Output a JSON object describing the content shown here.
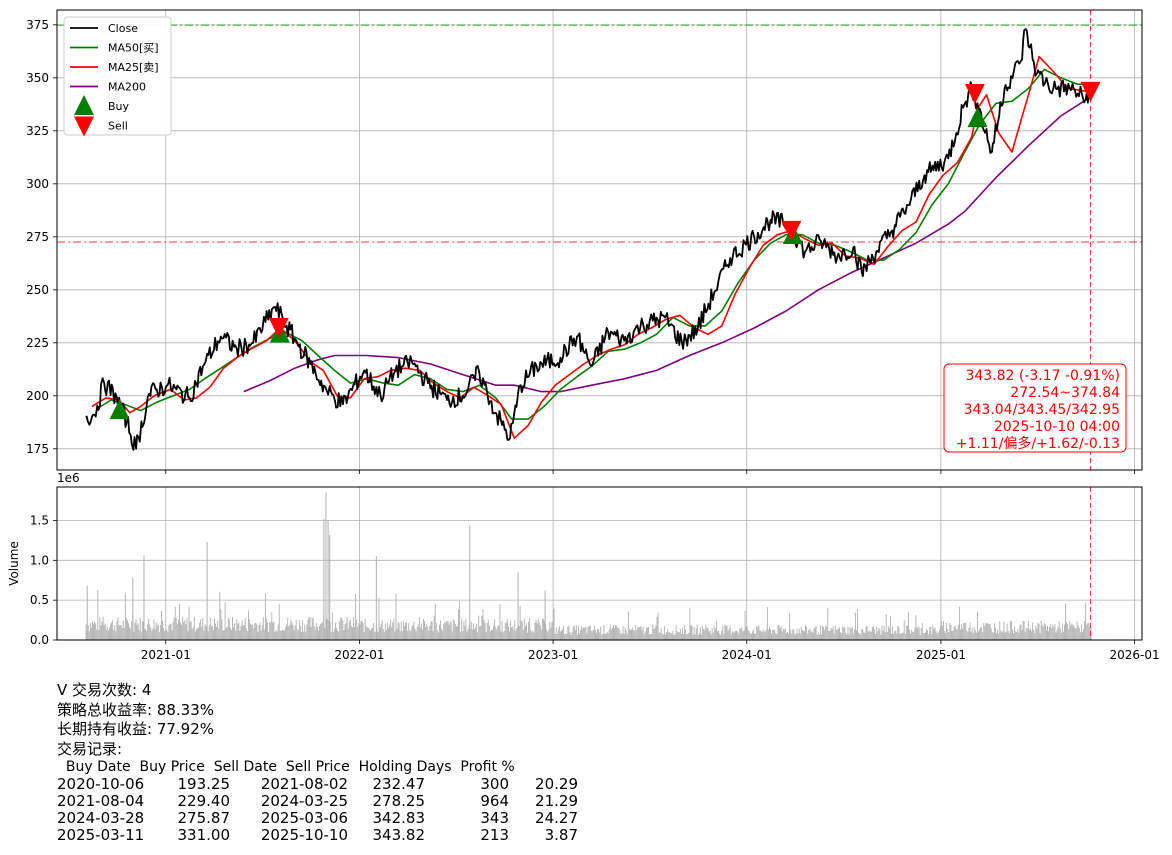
{
  "chart_data": [
    {
      "type": "line",
      "ylim": [
        165,
        382
      ],
      "yticks": [
        175,
        200,
        225,
        250,
        275,
        300,
        325,
        350,
        375
      ],
      "xlim": [
        "2020-06-10",
        "2026-01-15"
      ],
      "xticks": [
        "2021-01",
        "2022-01",
        "2023-01",
        "2024-01",
        "2025-01",
        "2026-01"
      ],
      "grid": true,
      "legend_position": "top-left",
      "colors": {
        "close": "#000000",
        "ma50": "#008000",
        "ma25": "#ff0000",
        "ma200": "#800080",
        "buy": "#008000",
        "sell": "#ff0000"
      },
      "series": [
        {
          "name": "Close",
          "color": "#000000",
          "x": [
            "2020-08-03",
            "2020-08-20",
            "2020-09-07",
            "2020-10-01",
            "2020-10-20",
            "2020-11-06",
            "2020-12-01",
            "2021-01-04",
            "2021-02-15",
            "2021-03-15",
            "2021-04-15",
            "2021-05-15",
            "2021-06-15",
            "2021-07-26",
            "2021-08-10",
            "2021-09-01",
            "2021-10-01",
            "2021-11-01",
            "2021-12-01",
            "2022-01-10",
            "2022-02-10",
            "2022-03-10",
            "2022-04-10",
            "2022-05-10",
            "2022-06-15",
            "2022-07-15",
            "2022-08-15",
            "2022-09-15",
            "2022-10-12",
            "2022-11-01",
            "2022-12-01",
            "2023-01-15",
            "2023-02-15",
            "2023-03-15",
            "2023-04-15",
            "2023-05-15",
            "2023-06-15",
            "2023-07-31",
            "2023-09-01",
            "2023-10-01",
            "2023-11-01",
            "2023-12-01",
            "2024-01-15",
            "2024-02-15",
            "2024-03-20",
            "2024-04-20",
            "2024-05-20",
            "2024-06-20",
            "2024-07-20",
            "2024-08-05",
            "2024-09-01",
            "2024-10-01",
            "2024-11-01",
            "2024-12-01",
            "2025-01-15",
            "2025-02-15",
            "2025-03-01",
            "2025-03-11",
            "2025-04-07",
            "2025-05-01",
            "2025-06-01",
            "2025-06-10",
            "2025-07-01",
            "2025-08-01",
            "2025-09-01",
            "2025-10-01",
            "2025-10-10"
          ],
          "values": [
            190,
            191,
            206,
            199,
            188,
            175,
            201,
            205,
            199,
            215,
            228,
            222,
            225,
            242,
            236,
            227,
            215,
            202,
            196,
            212,
            200,
            212,
            216,
            206,
            198,
            200,
            211,
            192,
            180,
            205,
            214,
            218,
            228,
            214,
            230,
            226,
            233,
            237,
            225,
            232,
            249,
            265,
            275,
            283,
            281,
            268,
            273,
            266,
            270,
            258,
            268,
            278,
            290,
            304,
            312,
            338,
            345,
            338,
            315,
            345,
            358,
            373,
            352,
            345,
            345,
            340,
            345
          ]
        },
        {
          "name": "MA50[买]",
          "color": "#008000",
          "x": [
            "2020-08-25",
            "2020-09-20",
            "2020-10-15",
            "2020-11-15",
            "2020-12-15",
            "2021-01-15",
            "2021-02-15",
            "2021-03-15",
            "2021-04-15",
            "2021-05-15",
            "2021-06-15",
            "2021-07-15",
            "2021-08-15",
            "2021-09-15",
            "2021-10-15",
            "2021-11-15",
            "2021-12-15",
            "2022-01-15",
            "2022-02-15",
            "2022-03-15",
            "2022-04-15",
            "2022-05-15",
            "2022-06-15",
            "2022-07-15",
            "2022-08-15",
            "2022-09-15",
            "2022-10-15",
            "2022-11-15",
            "2022-12-15",
            "2023-01-15",
            "2023-02-15",
            "2023-03-15",
            "2023-04-15",
            "2023-05-15",
            "2023-06-15",
            "2023-07-15",
            "2023-08-15",
            "2023-09-15",
            "2023-10-15",
            "2023-11-15",
            "2023-12-15",
            "2024-01-15",
            "2024-02-15",
            "2024-03-15",
            "2024-04-15",
            "2024-05-15",
            "2024-06-15",
            "2024-07-15",
            "2024-08-15",
            "2024-09-15",
            "2024-10-15",
            "2024-11-15",
            "2024-12-15",
            "2025-01-15",
            "2025-02-15",
            "2025-03-15",
            "2025-04-15",
            "2025-05-15",
            "2025-06-15",
            "2025-07-15",
            "2025-08-15",
            "2025-09-15",
            "2025-10-10"
          ],
          "values": [
            194,
            198,
            196,
            193,
            197,
            200,
            203,
            208,
            213,
            218,
            223,
            227,
            230,
            226,
            219,
            212,
            206,
            208,
            206,
            205,
            210,
            208,
            203,
            202,
            205,
            199,
            189,
            189,
            195,
            203,
            209,
            214,
            221,
            222,
            225,
            229,
            237,
            233,
            233,
            240,
            253,
            264,
            272,
            276,
            276,
            272,
            271,
            268,
            264,
            264,
            269,
            277,
            290,
            300,
            315,
            328,
            338,
            339,
            345,
            354,
            350,
            347,
            347
          ]
        },
        {
          "name": "MA25[卖]",
          "color": "#ff0000",
          "x": [
            "2020-08-15",
            "2020-09-10",
            "2020-10-05",
            "2020-10-25",
            "2020-11-15",
            "2020-12-10",
            "2021-01-10",
            "2021-02-05",
            "2021-02-28",
            "2021-03-25",
            "2021-04-20",
            "2021-05-15",
            "2021-06-10",
            "2021-07-10",
            "2021-08-05",
            "2021-09-01",
            "2021-10-01",
            "2021-10-25",
            "2021-11-20",
            "2021-12-15",
            "2022-01-10",
            "2022-02-05",
            "2022-03-01",
            "2022-03-28",
            "2022-04-25",
            "2022-05-20",
            "2022-06-15",
            "2022-07-10",
            "2022-08-05",
            "2022-09-01",
            "2022-09-25",
            "2022-10-20",
            "2022-11-15",
            "2022-12-10",
            "2023-01-05",
            "2023-02-01",
            "2023-02-28",
            "2023-03-25",
            "2023-04-20",
            "2023-05-15",
            "2023-06-10",
            "2023-07-05",
            "2023-08-01",
            "2023-08-28",
            "2023-09-25",
            "2023-10-20",
            "2023-11-15",
            "2023-12-10",
            "2024-01-05",
            "2024-02-01",
            "2024-02-28",
            "2024-03-25",
            "2024-04-20",
            "2024-05-15",
            "2024-06-10",
            "2024-07-05",
            "2024-08-01",
            "2024-08-28",
            "2024-09-25",
            "2024-10-20",
            "2024-11-15",
            "2024-12-10",
            "2025-01-05",
            "2025-02-01",
            "2025-02-28",
            "2025-03-10",
            "2025-03-28",
            "2025-04-20",
            "2025-05-15",
            "2025-06-01",
            "2025-06-15",
            "2025-07-05",
            "2025-08-01",
            "2025-08-28",
            "2025-09-25",
            "2025-10-10"
          ],
          "values": [
            195,
            199,
            198,
            192,
            195,
            200,
            203,
            198,
            199,
            204,
            213,
            218,
            222,
            226,
            232,
            226,
            216,
            212,
            200,
            199,
            208,
            209,
            212,
            213,
            212,
            206,
            202,
            199,
            204,
            200,
            196,
            180,
            186,
            197,
            205,
            210,
            215,
            219,
            222,
            224,
            229,
            232,
            236,
            238,
            232,
            229,
            233,
            248,
            260,
            271,
            276,
            278,
            274,
            271,
            272,
            266,
            265,
            262,
            271,
            278,
            282,
            295,
            304,
            310,
            322,
            335,
            342,
            324,
            315,
            330,
            342,
            360,
            353,
            345,
            344,
            343
          ]
        },
        {
          "name": "MA200",
          "color": "#800080",
          "x": [
            "2021-05-28",
            "2021-07-15",
            "2021-09-01",
            "2021-10-15",
            "2021-11-15",
            "2022-01-15",
            "2022-03-15",
            "2022-05-15",
            "2022-07-15",
            "2022-09-15",
            "2022-10-20",
            "2022-12-10",
            "2023-01-15",
            "2023-03-15",
            "2023-05-15",
            "2023-07-15",
            "2023-09-15",
            "2023-11-15",
            "2024-01-15",
            "2024-03-15",
            "2024-05-15",
            "2024-07-15",
            "2024-09-15",
            "2024-11-15",
            "2025-01-15",
            "2025-02-15",
            "2025-04-15",
            "2025-06-15",
            "2025-08-15",
            "2025-10-10"
          ],
          "values": [
            202,
            207,
            213,
            217,
            219,
            219,
            218,
            215,
            210,
            205,
            205,
            202,
            202,
            205,
            208,
            212,
            219,
            225,
            232,
            240,
            250,
            258,
            265,
            272,
            281,
            287,
            303,
            318,
            332,
            341
          ]
        },
        {
          "name": "Buy",
          "marker": "^",
          "x": [
            "2020-10-06",
            "2021-08-04",
            "2024-03-28",
            "2025-03-11"
          ],
          "values": [
            193.25,
            229.4,
            275.87,
            331.0
          ]
        },
        {
          "name": "Sell",
          "marker": "v",
          "x": [
            "2021-08-02",
            "2024-03-25",
            "2025-03-06",
            "2025-10-10"
          ],
          "values": [
            232.47,
            278.25,
            342.83,
            343.82
          ]
        }
      ],
      "hlines": [
        {
          "y": 374.84,
          "color": "#008000",
          "style": "dashdot"
        },
        {
          "y": 272.54,
          "color": "#ff0000",
          "style": "dashdot"
        }
      ],
      "vline": {
        "x": "2025-10-10",
        "color": "#ff0000",
        "style": "dashed"
      },
      "annotation": [
        "343.82 (-3.17 -0.91%)",
        "272.54~374.84",
        "343.04/343.45/342.95",
        "2025-10-10 04:00",
        "+1.11/偏多/+1.62/-0.13"
      ]
    },
    {
      "type": "bar",
      "ylabel": "Volume",
      "offset_label": "1e6",
      "ylim": [
        0,
        1.92
      ],
      "yticks": [
        "0.0",
        "0.5",
        "1.0",
        "1.5"
      ],
      "xticks": [
        "2021-01",
        "2022-01",
        "2023-01",
        "2024-01",
        "2025-01",
        "2026-01"
      ],
      "grid": true,
      "color": "#b0b0b0",
      "bars_spikes": [
        {
          "x": "2020-08-05",
          "value": 0.68
        },
        {
          "x": "2020-10-30",
          "value": 0.78
        },
        {
          "x": "2020-11-20",
          "value": 1.06
        },
        {
          "x": "2021-03-19",
          "value": 1.23
        },
        {
          "x": "2021-10-25",
          "value": 1.52
        },
        {
          "x": "2021-10-29",
          "value": 1.85
        },
        {
          "x": "2021-11-02",
          "value": 1.5
        },
        {
          "x": "2021-11-05",
          "value": 1.32
        },
        {
          "x": "2022-02-01",
          "value": 1.05
        },
        {
          "x": "2022-07-27",
          "value": 1.44
        },
        {
          "x": "2022-10-26",
          "value": 0.85
        },
        {
          "x": "2022-12-16",
          "value": 0.62
        }
      ]
    }
  ],
  "summary": {
    "title": "V 交易次数: 4",
    "strategy": "策略总收益率: 88.33%",
    "hold": "长期持有收益: 77.92%",
    "records": "交易记录:"
  },
  "trades": {
    "header": "  Buy Date  Buy Price  Sell Date  Sell Price  Holding Days  Profit %",
    "rows": [
      [
        "2020-10-06",
        "193.25",
        "2021-08-02",
        "232.47",
        "300",
        "20.29"
      ],
      [
        "2021-08-04",
        "229.40",
        "2024-03-25",
        "278.25",
        "964",
        "21.29"
      ],
      [
        "2024-03-28",
        "275.87",
        "2025-03-06",
        "342.83",
        "343",
        "24.27"
      ],
      [
        "2025-03-11",
        "331.00",
        "2025-10-10",
        "343.82",
        "213",
        "3.87"
      ]
    ]
  }
}
